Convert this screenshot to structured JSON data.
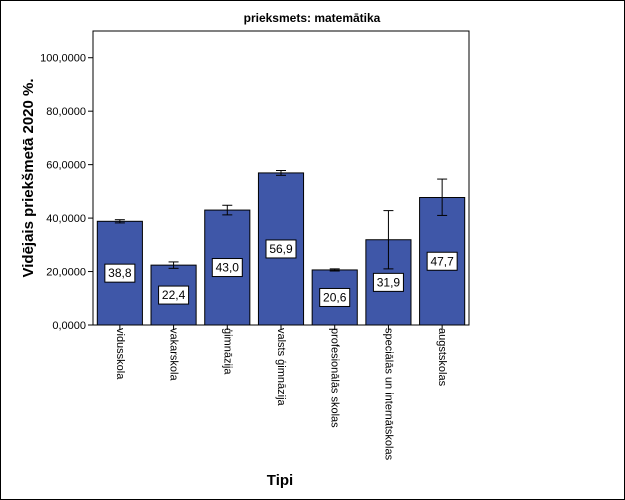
{
  "chart_data": {
    "type": "bar",
    "title": "prieksmets: matemātika",
    "xlabel": "Tipi",
    "ylabel": "Vidējais priekšmetā 2020 %.",
    "ylim": [
      0,
      110
    ],
    "yticks": [
      0,
      20,
      40,
      60,
      80,
      100
    ],
    "ytick_labels": [
      "0,0000",
      "20,0000",
      "40,0000",
      "60,0000",
      "80,0000",
      "100,0000"
    ],
    "categories": [
      "vidusskola",
      "vakarskola",
      "ģimnāzija",
      "valsts ģimnāzija",
      "profesionālās skolas",
      "speciālās un internātskolas",
      "augstskolas"
    ],
    "values": [
      38.8,
      22.4,
      43.0,
      56.9,
      20.6,
      31.9,
      47.7
    ],
    "value_labels": [
      "38,8",
      "22,4",
      "43,0",
      "56,9",
      "20,6",
      "31,9",
      "47,7"
    ],
    "error_low": [
      38.2,
      21.2,
      41.2,
      56.0,
      20.2,
      21.0,
      41.0
    ],
    "error_high": [
      39.4,
      23.6,
      44.8,
      57.8,
      21.0,
      42.8,
      54.6
    ],
    "bar_color": "#3f57a8",
    "grid": false,
    "legend": "none"
  }
}
